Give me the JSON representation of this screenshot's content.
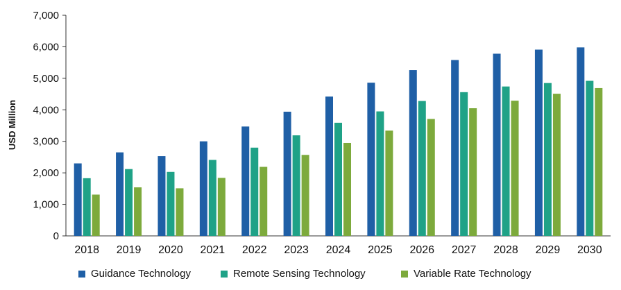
{
  "chart_data": {
    "type": "bar",
    "title": "",
    "xlabel": "",
    "ylabel": "USD Million",
    "ylim": [
      0,
      7000
    ],
    "yticks": [
      "0",
      "1,000",
      "2,000",
      "3,000",
      "4,000",
      "5,000",
      "6,000",
      "7,000"
    ],
    "grid": false,
    "legend_position": "bottom",
    "categories": [
      "2018",
      "2019",
      "2020",
      "2021",
      "2022",
      "2023",
      "2024",
      "2025",
      "2026",
      "2027",
      "2028",
      "2029",
      "2030"
    ],
    "series": [
      {
        "name": "Guidance Technology",
        "color": "#1F5FA6",
        "values": [
          2300,
          2650,
          2530,
          3000,
          3470,
          3940,
          4420,
          4860,
          5260,
          5580,
          5780,
          5910,
          5980
        ]
      },
      {
        "name": "Remote Sensing Technology",
        "color": "#1FA287",
        "values": [
          1830,
          2120,
          2030,
          2410,
          2800,
          3190,
          3590,
          3950,
          4280,
          4560,
          4740,
          4850,
          4920
        ]
      },
      {
        "name": "Variable Rate Technology",
        "color": "#7DAA3C",
        "values": [
          1310,
          1540,
          1510,
          1840,
          2190,
          2570,
          2950,
          3340,
          3710,
          4050,
          4290,
          4510,
          4690
        ]
      }
    ]
  }
}
